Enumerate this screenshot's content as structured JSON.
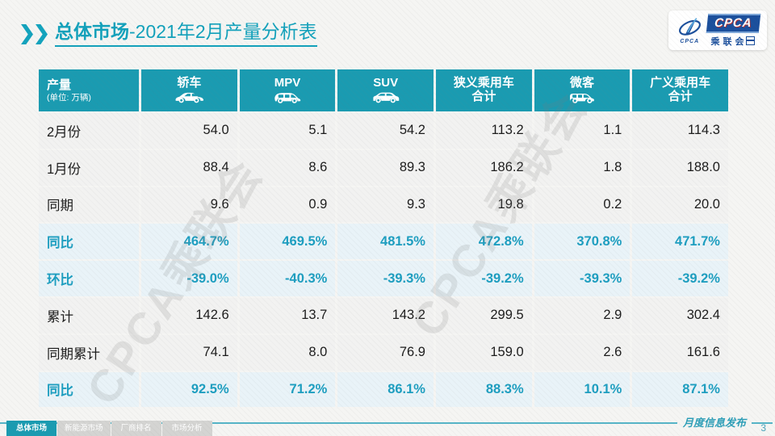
{
  "slide": {
    "title": {
      "prefix": "总体市场",
      "suffix": "-2021年2月产量分析表"
    },
    "logo": {
      "brand": "CPCA",
      "brand_sub": "乘联会",
      "icon_caption": "CPCA"
    },
    "watermark_text": "CPCA乘联会",
    "footer": {
      "release_label": "月度信息发布",
      "page_number": "3",
      "tabs": [
        {
          "label": "总体市场",
          "active": true
        },
        {
          "label": "新能源市场",
          "active": false
        },
        {
          "label": "厂商排名",
          "active": false
        },
        {
          "label": "市场分析",
          "active": false
        }
      ]
    },
    "colors": {
      "header_teal": "#1a9bb1",
      "percent_text_teal": "#1d9ec0",
      "percent_row_bg": "#e9f3f8",
      "row_bg": "#f2f2f1",
      "title_teal": "#12a1bb",
      "tab_inactive_gray": "#d4d4d2",
      "logo_blue": "#1b4f9c"
    }
  },
  "chart_data": {
    "type": "table",
    "title": "总体市场-2021年2月产量分析表",
    "corner": {
      "label": "产量",
      "unit": "(单位: 万辆)"
    },
    "columns": [
      {
        "label": "轿车",
        "icon": "sedan-icon"
      },
      {
        "label": "MPV",
        "icon": "mpv-icon"
      },
      {
        "label": "SUV",
        "icon": "suv-icon"
      },
      {
        "label": "狭义乘用车\n合计",
        "icon": ""
      },
      {
        "label": "微客",
        "icon": "microvan-icon"
      },
      {
        "label": "广义乘用车\n合计",
        "icon": ""
      }
    ],
    "rows": [
      {
        "label": "2月份",
        "style": "value",
        "cells": [
          "54.0",
          "5.1",
          "54.2",
          "113.2",
          "1.1",
          "114.3"
        ]
      },
      {
        "label": "1月份",
        "style": "value",
        "cells": [
          "88.4",
          "8.6",
          "89.3",
          "186.2",
          "1.8",
          "188.0"
        ]
      },
      {
        "label": "同期",
        "style": "value",
        "cells": [
          "9.6",
          "0.9",
          "9.3",
          "19.8",
          "0.2",
          "20.0"
        ]
      },
      {
        "label": "同比",
        "style": "percent",
        "cells": [
          "464.7%",
          "469.5%",
          "481.5%",
          "472.8%",
          "370.8%",
          "471.7%"
        ]
      },
      {
        "label": "环比",
        "style": "percent",
        "cells": [
          "-39.0%",
          "-40.3%",
          "-39.3%",
          "-39.2%",
          "-39.3%",
          "-39.2%"
        ]
      },
      {
        "label": "累计",
        "style": "value",
        "cells": [
          "142.6",
          "13.7",
          "143.2",
          "299.5",
          "2.9",
          "302.4"
        ]
      },
      {
        "label": "同期累计",
        "style": "value",
        "cells": [
          "74.1",
          "8.0",
          "76.9",
          "159.0",
          "2.6",
          "161.6"
        ]
      },
      {
        "label": "同比",
        "style": "percent",
        "cells": [
          "92.5%",
          "71.2%",
          "86.1%",
          "88.3%",
          "10.1%",
          "87.1%"
        ]
      }
    ]
  }
}
